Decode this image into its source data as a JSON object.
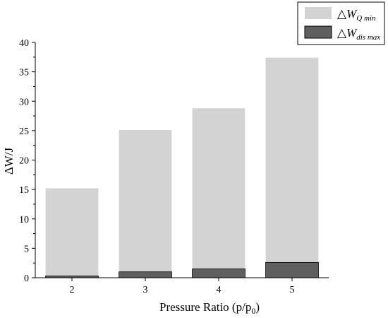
{
  "chart_data": {
    "type": "bar",
    "categories": [
      "2",
      "3",
      "4",
      "5"
    ],
    "series": [
      {
        "name": "ΔW_Q min",
        "values": [
          15.2,
          25.1,
          28.8,
          37.4
        ],
        "color": "#d3d3d3"
      },
      {
        "name": "ΔW_dis max",
        "values": [
          0.3,
          1.0,
          1.5,
          2.6
        ],
        "color": "#5f5f5f"
      }
    ],
    "overlapping": true,
    "xlabel": "Pressure Ratio (p/p0)",
    "ylabel": "ΔW/J",
    "ylim": [
      0,
      40
    ],
    "yticks": [
      0,
      5,
      10,
      15,
      20,
      25,
      30,
      35,
      40
    ],
    "grid": false,
    "legend_position": "top-right"
  },
  "legend": {
    "item1": {
      "main": "△W",
      "sub": "Q min"
    },
    "item2": {
      "main": "△W",
      "sub": "dis max"
    }
  },
  "axes": {
    "xlabel_main": "Pressure Ratio (p/p",
    "xlabel_sub": "0",
    "xlabel_end": ")",
    "ylabel": "ΔW/J"
  }
}
